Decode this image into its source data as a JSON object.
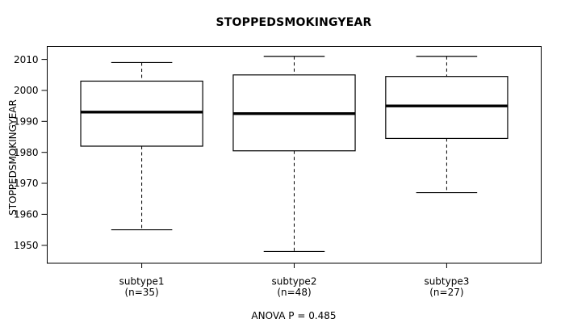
{
  "chart_data": {
    "type": "boxplot",
    "title": "STOPPEDSMOKINGYEAR",
    "ylabel": "STOPPEDSMOKINGYEAR",
    "xlabel": "",
    "annotation": "ANOVA P = 0.485",
    "yticks": [
      1950,
      1960,
      1970,
      1980,
      1990,
      2000,
      2010
    ],
    "ylim": [
      1944.2,
      2014.2
    ],
    "xlim": [
      0.38,
      3.62
    ],
    "box_width": 0.8,
    "cap_width": 0.4,
    "grid": false,
    "legend": false,
    "orientation": "vertical",
    "whisker_style": "dashed",
    "colors": {
      "line": "#000000",
      "box_fill": "#ffffff",
      "background": "#ffffff"
    },
    "groups": [
      {
        "label": "subtype1",
        "sublabel": "(n=35)",
        "n": 35,
        "position": 1,
        "whisker_low": 1955,
        "q1": 1982,
        "median": 1993,
        "q3": 2003,
        "whisker_high": 2009
      },
      {
        "label": "subtype2",
        "sublabel": "(n=48)",
        "n": 48,
        "position": 2,
        "whisker_low": 1948,
        "q1": 1980.5,
        "median": 1992.5,
        "q3": 2005,
        "whisker_high": 2011
      },
      {
        "label": "subtype3",
        "sublabel": "(n=27)",
        "n": 27,
        "position": 3,
        "whisker_low": 1967,
        "q1": 1984.5,
        "median": 1995,
        "q3": 2004.5,
        "whisker_high": 2011
      }
    ]
  }
}
